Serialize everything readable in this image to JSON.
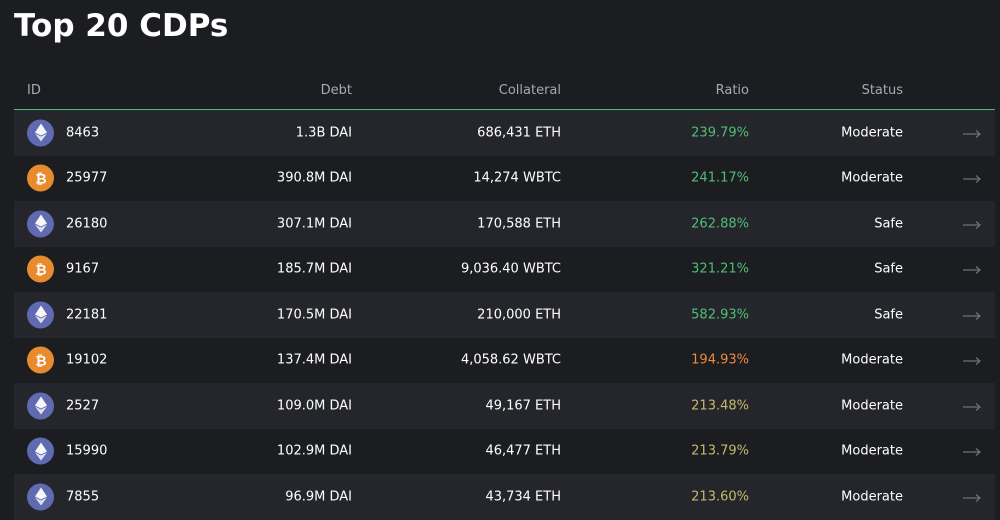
{
  "page": {
    "title": "Top 20 CDPs"
  },
  "table": {
    "columns": {
      "id": "ID",
      "debt": "Debt",
      "collateral": "Collateral",
      "ratio": "Ratio",
      "status": "Status"
    },
    "rows": [
      {
        "coin": "eth-icon",
        "id": "8463",
        "debt": "1.3B DAI",
        "collateral": "686,431 ETH",
        "ratio": "239.79%",
        "ratio_color": "#4fbf74",
        "status": "Moderate"
      },
      {
        "coin": "btc-icon",
        "id": "25977",
        "debt": "390.8M DAI",
        "collateral": "14,274 WBTC",
        "ratio": "241.17%",
        "ratio_color": "#4fbf74",
        "status": "Moderate"
      },
      {
        "coin": "eth-icon",
        "id": "26180",
        "debt": "307.1M DAI",
        "collateral": "170,588 ETH",
        "ratio": "262.88%",
        "ratio_color": "#4fbf74",
        "status": "Safe"
      },
      {
        "coin": "btc-icon",
        "id": "9167",
        "debt": "185.7M DAI",
        "collateral": "9,036.40 WBTC",
        "ratio": "321.21%",
        "ratio_color": "#4fbf74",
        "status": "Safe"
      },
      {
        "coin": "eth-icon",
        "id": "22181",
        "debt": "170.5M DAI",
        "collateral": "210,000 ETH",
        "ratio": "582.93%",
        "ratio_color": "#4fbf74",
        "status": "Safe"
      },
      {
        "coin": "btc-icon",
        "id": "19102",
        "debt": "137.4M DAI",
        "collateral": "4,058.62 WBTC",
        "ratio": "194.93%",
        "ratio_color": "#f0883e",
        "status": "Moderate"
      },
      {
        "coin": "eth-icon",
        "id": "2527",
        "debt": "109.0M DAI",
        "collateral": "49,167 ETH",
        "ratio": "213.48%",
        "ratio_color": "#c7b86a",
        "status": "Moderate"
      },
      {
        "coin": "eth-icon",
        "id": "15990",
        "debt": "102.9M DAI",
        "collateral": "46,477 ETH",
        "ratio": "213.79%",
        "ratio_color": "#c7b86a",
        "status": "Moderate"
      },
      {
        "coin": "eth-icon",
        "id": "7855",
        "debt": "96.9M DAI",
        "collateral": "43,734 ETH",
        "ratio": "213.60%",
        "ratio_color": "#c7b86a",
        "status": "Moderate"
      }
    ]
  }
}
